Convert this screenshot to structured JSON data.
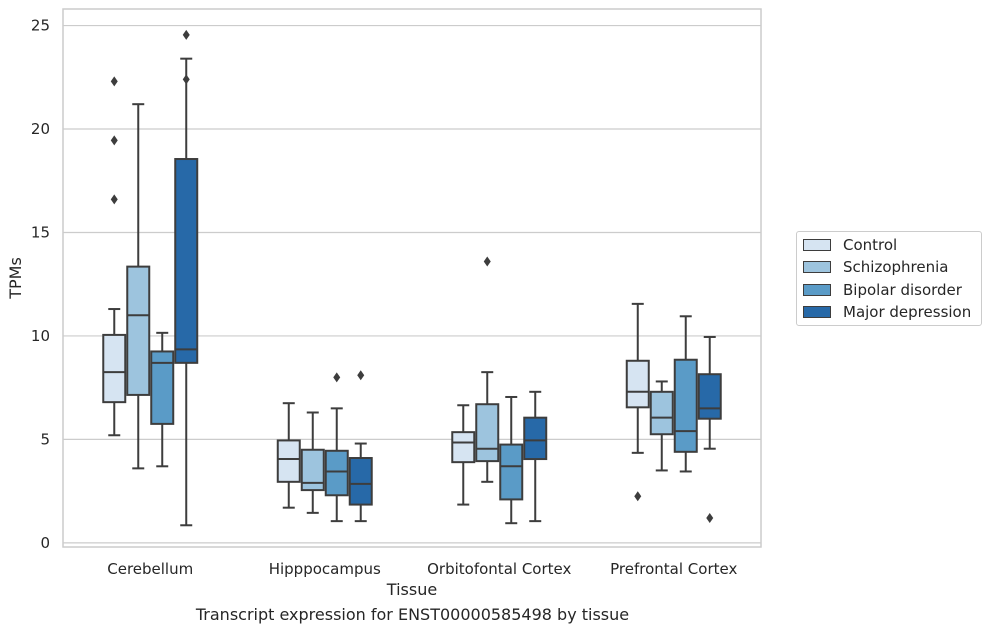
{
  "caption": "Transcript expression for ENST00000585498 by tissue",
  "chart_data": {
    "type": "box",
    "xlabel": "Tissue",
    "ylabel": "TPMs",
    "ylim": [
      -0.2,
      25.8
    ],
    "yticks": [
      0,
      5,
      10,
      15,
      20,
      25
    ],
    "grid": "y",
    "legend_position": "right",
    "categories": [
      "Cerebellum",
      "Hipppocampus",
      "Orbitofontal Cortex",
      "Prefrontal Cortex"
    ],
    "series": [
      {
        "name": "Control",
        "color": "#d6e4f2",
        "boxes": [
          {
            "whislo": 5.2,
            "q1": 6.8,
            "med": 8.25,
            "q3": 10.05,
            "whishi": 11.3,
            "fliers": [
              16.6,
              19.45,
              22.3
            ]
          },
          {
            "whislo": 1.7,
            "q1": 2.95,
            "med": 4.05,
            "q3": 4.95,
            "whishi": 6.75,
            "fliers": []
          },
          {
            "whislo": 1.85,
            "q1": 3.9,
            "med": 4.85,
            "q3": 5.35,
            "whishi": 6.65,
            "fliers": []
          },
          {
            "whislo": 4.35,
            "q1": 6.55,
            "med": 7.3,
            "q3": 8.8,
            "whishi": 11.55,
            "fliers": [
              2.25
            ]
          }
        ]
      },
      {
        "name": "Schizophrenia",
        "color": "#9dc4de",
        "boxes": [
          {
            "whislo": 3.6,
            "q1": 7.15,
            "med": 11.0,
            "q3": 13.35,
            "whishi": 21.2,
            "fliers": []
          },
          {
            "whislo": 1.45,
            "q1": 2.55,
            "med": 2.9,
            "q3": 4.5,
            "whishi": 6.3,
            "fliers": []
          },
          {
            "whislo": 2.95,
            "q1": 3.95,
            "med": 4.55,
            "q3": 6.7,
            "whishi": 8.25,
            "fliers": [
              13.6
            ]
          },
          {
            "whislo": 3.5,
            "q1": 5.25,
            "med": 6.05,
            "q3": 7.3,
            "whishi": 7.8,
            "fliers": []
          }
        ]
      },
      {
        "name": "Bipolar disorder",
        "color": "#5a9bc7",
        "boxes": [
          {
            "whislo": 3.7,
            "q1": 5.75,
            "med": 8.7,
            "q3": 9.25,
            "whishi": 10.15,
            "fliers": []
          },
          {
            "whislo": 1.05,
            "q1": 2.3,
            "med": 3.45,
            "q3": 4.45,
            "whishi": 6.5,
            "fliers": [
              8.0
            ]
          },
          {
            "whislo": 0.95,
            "q1": 2.1,
            "med": 3.7,
            "q3": 4.75,
            "whishi": 7.05,
            "fliers": []
          },
          {
            "whislo": 3.45,
            "q1": 4.4,
            "med": 5.4,
            "q3": 8.85,
            "whishi": 10.95,
            "fliers": []
          }
        ]
      },
      {
        "name": "Major depression",
        "color": "#2769a8",
        "boxes": [
          {
            "whislo": 0.85,
            "q1": 8.7,
            "med": 9.35,
            "q3": 18.55,
            "whishi": 23.4,
            "fliers": [
              22.4,
              24.55
            ]
          },
          {
            "whislo": 1.05,
            "q1": 1.85,
            "med": 2.85,
            "q3": 4.1,
            "whishi": 4.8,
            "fliers": [
              8.1
            ]
          },
          {
            "whislo": 1.05,
            "q1": 4.05,
            "med": 4.95,
            "q3": 6.05,
            "whishi": 7.3,
            "fliers": []
          },
          {
            "whislo": 4.55,
            "q1": 6.0,
            "med": 6.5,
            "q3": 8.15,
            "whishi": 9.95,
            "fliers": [
              1.2
            ]
          }
        ]
      }
    ]
  }
}
